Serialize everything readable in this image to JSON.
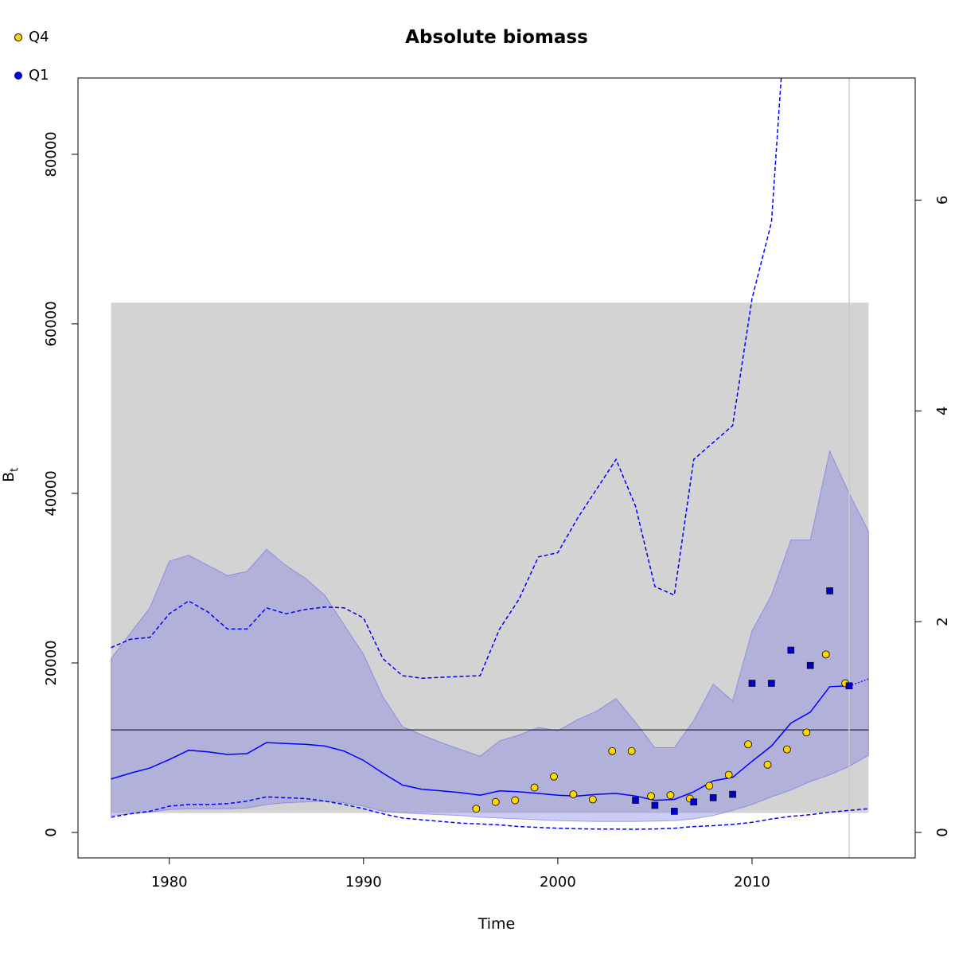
{
  "chart_data": {
    "type": "line",
    "title": "Absolute biomass",
    "xlabel": "Time",
    "ylabel_main": "B",
    "ylabel_sub": "t",
    "xlim": [
      1975.3,
      2018.4
    ],
    "ylim": [
      -3000,
      89000
    ],
    "ylim_right": [
      0,
      7.4
    ],
    "x_ticks": [
      1980,
      1990,
      2000,
      2010
    ],
    "y_ticks": [
      0,
      20000,
      40000,
      60000,
      80000
    ],
    "y_ticks_right": [
      0,
      2,
      4,
      6
    ],
    "legend": [
      {
        "name": "Q4",
        "color": "#FFD700"
      },
      {
        "name": "Q1",
        "color": "#0000CD"
      }
    ],
    "bmsy_band": {
      "x": [
        1977,
        2016
      ],
      "y": [
        2300,
        62500
      ],
      "color": "#D3D3D3"
    },
    "bmsy_line": 12100,
    "forecast_start": 2015,
    "biomass_ci_band": {
      "x": [
        1977,
        1978,
        1979,
        1980,
        1981,
        1982,
        1983,
        1984,
        1985,
        1986,
        1987,
        1988,
        1989,
        1990,
        1991,
        1992,
        1993,
        1994,
        1995,
        1996,
        1997,
        1998,
        1999,
        2000,
        2001,
        2002,
        2003,
        2004,
        2005,
        2006,
        2007,
        2008,
        2009,
        2010,
        2011,
        2012,
        2013,
        2014,
        2015,
        2016
      ],
      "lower": [
        2000,
        2200,
        2400,
        2700,
        2800,
        2800,
        2800,
        2900,
        3300,
        3500,
        3600,
        3700,
        3500,
        3100,
        2500,
        2300,
        2200,
        2100,
        2000,
        1800,
        1700,
        1600,
        1500,
        1400,
        1350,
        1300,
        1300,
        1300,
        1350,
        1400,
        1600,
        2000,
        2600,
        3300,
        4200,
        5000,
        6000,
        6800,
        7800,
        9100
      ],
      "upper": [
        20500,
        23500,
        26500,
        32000,
        32700,
        31500,
        30300,
        30800,
        33400,
        31500,
        30000,
        28000,
        24500,
        21000,
        16000,
        12500,
        11500,
        10600,
        9800,
        9000,
        10800,
        11500,
        12400,
        12000,
        13300,
        14300,
        15800,
        13000,
        10000,
        10000,
        13200,
        17500,
        15500,
        23800,
        28000,
        34500,
        34500,
        45000,
        40000,
        35500
      ]
    },
    "series": [
      {
        "name": "",
        "style": "solid",
        "color": "#0000FF",
        "x": [
          1977,
          1978,
          1979,
          1980,
          1981,
          1982,
          1983,
          1984,
          1985,
          1986,
          1987,
          1988,
          1989,
          1990,
          1991,
          1992,
          1993,
          1994,
          1995,
          1996,
          1997,
          1998,
          1999,
          2000,
          2001,
          2002,
          2003,
          2004,
          2005,
          2006,
          2007,
          2008,
          2009,
          2010,
          2011,
          2012,
          2013,
          2014,
          2015
        ],
        "y": [
          6300,
          7000,
          7600,
          8600,
          9700,
          9500,
          9200,
          9300,
          10600,
          10500,
          10400,
          10200,
          9600,
          8500,
          7000,
          5600,
          5100,
          4900,
          4700,
          4400,
          4900,
          4800,
          4600,
          4400,
          4300,
          4500,
          4600,
          4300,
          3800,
          3900,
          4800,
          6100,
          6500,
          8400,
          10200,
          12900,
          14200,
          17200,
          17300
        ]
      },
      {
        "name": "",
        "style": "dotted",
        "color": "#0000FF",
        "x": [
          2015,
          2016
        ],
        "y": [
          17300,
          18100
        ]
      },
      {
        "name": "",
        "style": "dashed",
        "color": "#0000FF",
        "x": [
          1977,
          1978,
          1979,
          1980,
          1981,
          1982,
          1983,
          1984,
          1985,
          1986,
          1987,
          1988,
          1989,
          1990,
          1991,
          1992,
          1993,
          1994,
          1995,
          1996,
          1997,
          1998,
          1999,
          2000,
          2001,
          2002,
          2003,
          2004,
          2005,
          2006,
          2007,
          2008,
          2009,
          2010,
          2011,
          2012,
          2013,
          2014,
          2015,
          2016
        ],
        "y": [
          1800,
          2200,
          2500,
          3100,
          3300,
          3300,
          3400,
          3700,
          4200,
          4100,
          4000,
          3700,
          3300,
          2800,
          2200,
          1700,
          1500,
          1300,
          1100,
          1000,
          900,
          700,
          600,
          500,
          450,
          400,
          400,
          380,
          420,
          500,
          700,
          800,
          950,
          1200,
          1600,
          1900,
          2100,
          2400,
          2600,
          2800
        ]
      },
      {
        "name": "",
        "style": "dashed",
        "color": "#0000FF",
        "x": [
          1977,
          1978,
          1979,
          1980,
          1981,
          1982,
          1983,
          1984,
          1985,
          1986,
          1987,
          1988,
          1989,
          1990,
          1991,
          1992,
          1993,
          1994,
          1995,
          1996,
          1997,
          1998,
          1999,
          2000,
          2001,
          2002,
          2003,
          2004,
          2005,
          2006,
          2007,
          2008,
          2009,
          2010,
          2011,
          2011.5
        ],
        "y": [
          21800,
          22800,
          23000,
          25800,
          27300,
          26000,
          24000,
          24000,
          26500,
          25800,
          26300,
          26600,
          26500,
          25300,
          20500,
          18500,
          18200,
          18300,
          18400,
          18500,
          24000,
          27500,
          32500,
          33000,
          37000,
          40500,
          44000,
          38500,
          29000,
          28000,
          44000,
          46000,
          48000,
          63000,
          72000,
          89000
        ]
      }
    ],
    "points_q4": {
      "name": "Q4",
      "color": "#FFD700",
      "x": [
        1995.8,
        1996.8,
        1997.8,
        1998.8,
        1999.8,
        2000.8,
        2001.8,
        2002.8,
        2003.8,
        2004.8,
        2005.8,
        2006.8,
        2007.8,
        2008.8,
        2009.8,
        2010.8,
        2011.8,
        2012.8,
        2013.8,
        2014.8
      ],
      "y": [
        2800,
        3600,
        3800,
        5300,
        6600,
        4500,
        3900,
        9600,
        9600,
        4300,
        4400,
        4000,
        5500,
        6800,
        10400,
        8000,
        9800,
        11800,
        21000,
        17600
      ]
    },
    "points_q1": {
      "name": "Q1",
      "color": "#0000CD",
      "x": [
        2004,
        2005,
        2006,
        2007,
        2008,
        2009,
        2010,
        2011,
        2012,
        2013,
        2014,
        2015
      ],
      "y": [
        3800,
        3200,
        2500,
        3600,
        4100,
        4500,
        17600,
        17600,
        21500,
        19700,
        28500,
        17300
      ]
    }
  }
}
